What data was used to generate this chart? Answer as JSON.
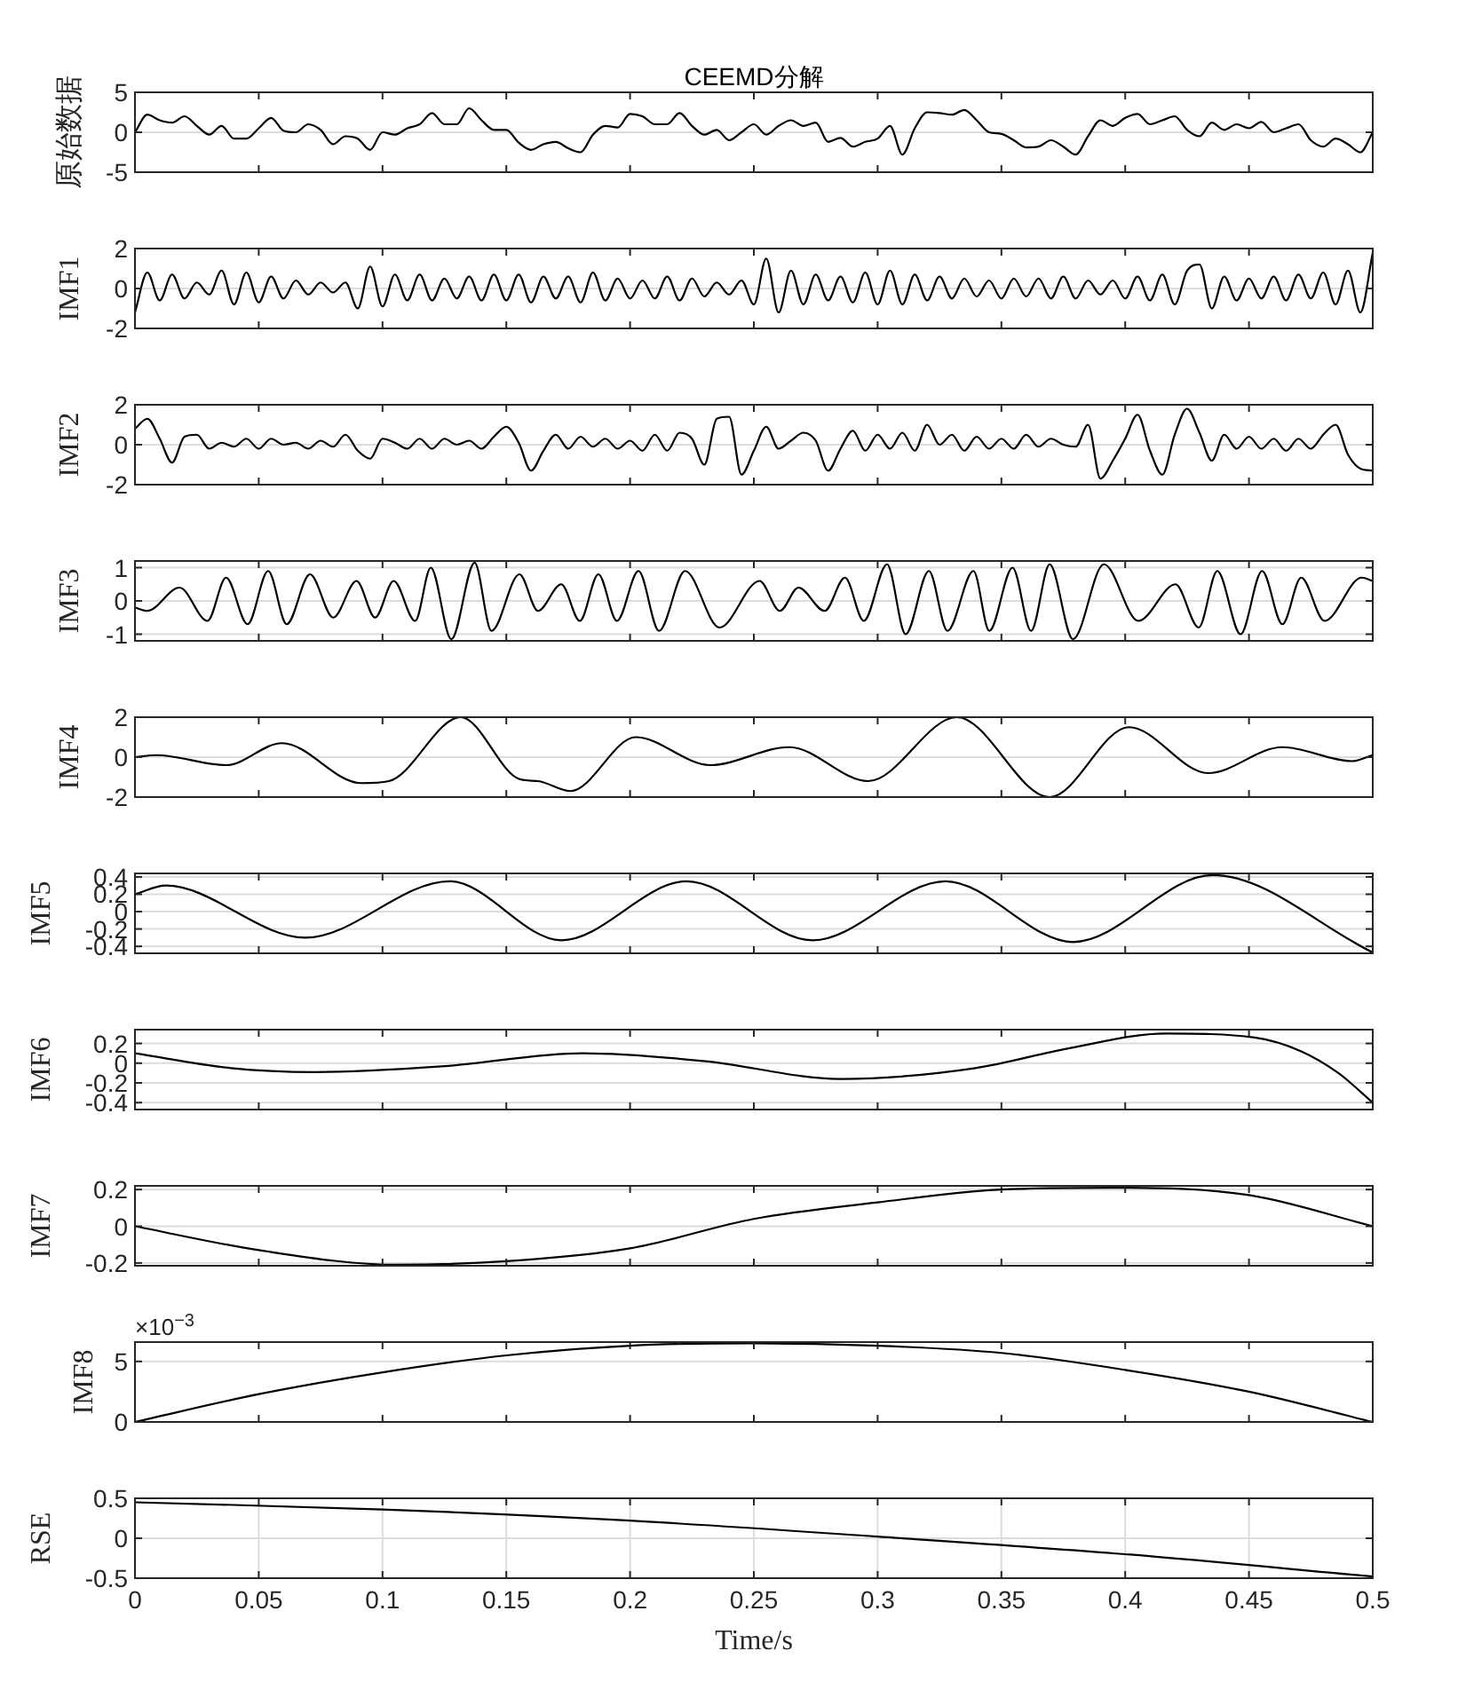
{
  "chart_data": [
    {
      "type": "line",
      "title": "CEEMD分解",
      "ylabel": "原始数据",
      "xlim": [
        0,
        0.5
      ],
      "xticks": [
        0,
        0.05,
        0.1,
        0.15,
        0.2,
        0.25,
        0.3,
        0.35,
        0.4,
        0.45,
        0.5
      ],
      "ylim": [
        -5,
        5
      ],
      "yticks": [
        -5,
        0,
        5
      ],
      "grid": "y",
      "tick_labels": "y",
      "x": [
        0,
        0.005,
        0.01,
        0.015,
        0.02,
        0.025,
        0.03,
        0.035,
        0.04,
        0.045,
        0.05,
        0.055,
        0.06,
        0.065,
        0.07,
        0.075,
        0.08,
        0.085,
        0.09,
        0.095,
        0.1,
        0.105,
        0.11,
        0.115,
        0.12,
        0.125,
        0.13,
        0.135,
        0.14,
        0.145,
        0.15,
        0.155,
        0.16,
        0.165,
        0.17,
        0.175,
        0.18,
        0.185,
        0.19,
        0.195,
        0.2,
        0.205,
        0.21,
        0.215,
        0.22,
        0.225,
        0.23,
        0.235,
        0.24,
        0.245,
        0.25,
        0.255,
        0.26,
        0.265,
        0.27,
        0.275,
        0.28,
        0.285,
        0.29,
        0.295,
        0.3,
        0.305,
        0.31,
        0.315,
        0.32,
        0.325,
        0.33,
        0.335,
        0.34,
        0.345,
        0.35,
        0.355,
        0.36,
        0.365,
        0.37,
        0.375,
        0.38,
        0.385,
        0.39,
        0.395,
        0.4,
        0.405,
        0.41,
        0.415,
        0.42,
        0.425,
        0.43,
        0.435,
        0.44,
        0.445,
        0.45,
        0.455,
        0.46,
        0.465,
        0.47,
        0.475,
        0.48,
        0.485,
        0.49,
        0.495,
        0.5
      ],
      "series": [
        {
          "color": "#000000",
          "values": [
            0,
            2.2,
            1.5,
            1.2,
            2.0,
            0.8,
            -0.3,
            0.8,
            -0.8,
            -0.8,
            0.5,
            1.8,
            0.2,
            0,
            1,
            0.3,
            -1.5,
            -0.5,
            -0.8,
            -2.2,
            0,
            -0.3,
            0.5,
            1.0,
            2.4,
            1.0,
            1.0,
            3.0,
            1.5,
            0.3,
            0.3,
            -1.3,
            -2.2,
            -1.5,
            -1.2,
            -2.0,
            -2.5,
            -0.3,
            0.8,
            0.6,
            2.3,
            2.0,
            1.0,
            1.0,
            2.4,
            0.8,
            -0.3,
            0.3,
            -1.0,
            0,
            1.0,
            -0.3,
            0.8,
            1.5,
            0.8,
            1.2,
            -1.2,
            -0.7,
            -1.8,
            -1.2,
            -0.8,
            0.8,
            -2.8,
            0.5,
            2.5,
            2.4,
            2.2,
            2.8,
            1.5,
            0,
            -0.2,
            -1.0,
            -1.9,
            -1.8,
            -1.0,
            -1.8,
            -2.8,
            -0.5,
            1.5,
            0.8,
            1.8,
            2.3,
            1.0,
            1.5,
            2.0,
            0.3,
            -0.5,
            1.2,
            0.3,
            1.0,
            0.5,
            1.3,
            0,
            0.5,
            1.0,
            -1.0,
            -1.8,
            -0.8,
            -1.5,
            -2.5,
            0
          ]
        }
      ]
    },
    {
      "type": "line",
      "ylabel": "IMF1",
      "xlim": [
        0,
        0.5
      ],
      "xticks": [
        0,
        0.05,
        0.1,
        0.15,
        0.2,
        0.25,
        0.3,
        0.35,
        0.4,
        0.45,
        0.5
      ],
      "ylim": [
        -2,
        2
      ],
      "yticks": [
        -2,
        0,
        2
      ],
      "grid": "y",
      "tick_labels": "y",
      "x": [
        0,
        0.005,
        0.01,
        0.015,
        0.02,
        0.025,
        0.03,
        0.035,
        0.04,
        0.045,
        0.05,
        0.055,
        0.06,
        0.065,
        0.07,
        0.075,
        0.08,
        0.085,
        0.09,
        0.095,
        0.1,
        0.105,
        0.11,
        0.115,
        0.12,
        0.125,
        0.13,
        0.135,
        0.14,
        0.145,
        0.15,
        0.155,
        0.16,
        0.165,
        0.17,
        0.175,
        0.18,
        0.185,
        0.19,
        0.195,
        0.2,
        0.205,
        0.21,
        0.215,
        0.22,
        0.225,
        0.23,
        0.235,
        0.24,
        0.245,
        0.25,
        0.255,
        0.26,
        0.265,
        0.27,
        0.275,
        0.28,
        0.285,
        0.29,
        0.295,
        0.3,
        0.305,
        0.31,
        0.315,
        0.32,
        0.325,
        0.33,
        0.335,
        0.34,
        0.345,
        0.35,
        0.355,
        0.36,
        0.365,
        0.37,
        0.375,
        0.38,
        0.385,
        0.39,
        0.395,
        0.4,
        0.405,
        0.41,
        0.415,
        0.42,
        0.425,
        0.43,
        0.435,
        0.44,
        0.445,
        0.45,
        0.455,
        0.46,
        0.465,
        0.47,
        0.475,
        0.48,
        0.485,
        0.49,
        0.495,
        0.5
      ],
      "series": [
        {
          "color": "#000000",
          "values": [
            -1.2,
            0.8,
            -0.6,
            0.7,
            -0.5,
            0.3,
            -0.3,
            0.9,
            -0.8,
            0.8,
            -0.7,
            0.6,
            -0.5,
            0.4,
            -0.3,
            0.3,
            -0.2,
            0.3,
            -1.0,
            1.1,
            -0.9,
            0.7,
            -0.6,
            0.7,
            -0.6,
            0.5,
            -0.5,
            0.6,
            -0.6,
            0.7,
            -0.6,
            0.7,
            -0.7,
            0.6,
            -0.5,
            0.6,
            -0.7,
            0.8,
            -0.6,
            0.5,
            -0.5,
            0.4,
            -0.5,
            0.6,
            -0.6,
            0.5,
            -0.4,
            0.3,
            -0.3,
            0.4,
            -0.8,
            1.5,
            -1.2,
            0.9,
            -0.8,
            0.7,
            -0.6,
            0.6,
            -0.7,
            0.8,
            -0.8,
            0.9,
            -0.8,
            0.7,
            -0.6,
            0.6,
            -0.5,
            0.5,
            -0.4,
            0.4,
            -0.5,
            0.5,
            -0.4,
            0.5,
            -0.5,
            0.6,
            -0.5,
            0.4,
            -0.3,
            0.4,
            -0.5,
            0.6,
            -0.6,
            0.7,
            -0.8,
            0.9,
            1.2,
            -1.0,
            0.6,
            -0.6,
            0.5,
            -0.5,
            0.6,
            -0.6,
            0.7,
            -0.5,
            0.8,
            -0.8,
            0.9,
            -1.2,
            1.8
          ]
        }
      ]
    },
    {
      "type": "line",
      "ylabel": "IMF2",
      "xlim": [
        0,
        0.5
      ],
      "xticks": [
        0,
        0.05,
        0.1,
        0.15,
        0.2,
        0.25,
        0.3,
        0.35,
        0.4,
        0.45,
        0.5
      ],
      "ylim": [
        -2,
        2
      ],
      "yticks": [
        -2,
        0,
        2
      ],
      "grid": "y",
      "tick_labels": "y",
      "x": [
        0,
        0.005,
        0.01,
        0.015,
        0.02,
        0.025,
        0.03,
        0.035,
        0.04,
        0.045,
        0.05,
        0.055,
        0.06,
        0.065,
        0.07,
        0.075,
        0.08,
        0.085,
        0.09,
        0.095,
        0.1,
        0.105,
        0.11,
        0.115,
        0.12,
        0.125,
        0.13,
        0.135,
        0.14,
        0.145,
        0.15,
        0.155,
        0.16,
        0.165,
        0.17,
        0.175,
        0.18,
        0.185,
        0.19,
        0.195,
        0.2,
        0.205,
        0.21,
        0.215,
        0.22,
        0.225,
        0.23,
        0.235,
        0.24,
        0.245,
        0.25,
        0.255,
        0.26,
        0.265,
        0.27,
        0.275,
        0.28,
        0.285,
        0.29,
        0.295,
        0.3,
        0.305,
        0.31,
        0.315,
        0.32,
        0.325,
        0.33,
        0.335,
        0.34,
        0.345,
        0.35,
        0.355,
        0.36,
        0.365,
        0.37,
        0.375,
        0.38,
        0.385,
        0.39,
        0.395,
        0.4,
        0.405,
        0.41,
        0.415,
        0.42,
        0.425,
        0.43,
        0.435,
        0.44,
        0.445,
        0.45,
        0.455,
        0.46,
        0.465,
        0.47,
        0.475,
        0.48,
        0.485,
        0.49,
        0.495,
        0.5
      ],
      "series": [
        {
          "color": "#000000",
          "values": [
            0.8,
            1.3,
            0.3,
            -0.9,
            0.4,
            0.5,
            -0.2,
            0.1,
            -0.1,
            0.3,
            -0.2,
            0.3,
            0,
            0.1,
            -0.2,
            0.2,
            -0.1,
            0.5,
            -0.3,
            -0.7,
            0.3,
            0.1,
            -0.2,
            0.3,
            -0.2,
            0.3,
            0,
            0.2,
            -0.2,
            0.4,
            0.9,
            0.1,
            -1.3,
            -0.3,
            0.5,
            -0.2,
            0.4,
            -0.1,
            0.3,
            -0.2,
            0.2,
            -0.3,
            0.5,
            -0.3,
            0.6,
            0.3,
            -1.0,
            1.3,
            1.4,
            -1.5,
            -0.3,
            0.9,
            -0.2,
            0.2,
            0.6,
            0.2,
            -1.3,
            -0.2,
            0.7,
            -0.3,
            0.5,
            -0.2,
            0.6,
            -0.3,
            1.0,
            0,
            0.5,
            -0.3,
            0.4,
            -0.2,
            0.3,
            -0.2,
            0.5,
            -0.1,
            0.3,
            0,
            -0.1,
            1.0,
            -1.7,
            -0.8,
            0.3,
            1.5,
            -0.3,
            -1.5,
            0.5,
            1.8,
            0.6,
            -0.8,
            0.5,
            -0.2,
            0.4,
            -0.2,
            0.3,
            -0.3,
            0.3,
            -0.2,
            0.5,
            1.0,
            -0.5,
            -1.2,
            -1.3
          ]
        }
      ]
    },
    {
      "type": "line",
      "ylabel": "IMF3",
      "xlim": [
        0,
        0.5
      ],
      "xticks": [
        0,
        0.05,
        0.1,
        0.15,
        0.2,
        0.25,
        0.3,
        0.35,
        0.4,
        0.45,
        0.5
      ],
      "ylim": [
        -1.2,
        1.2
      ],
      "yticks": [
        -1,
        0,
        1
      ],
      "grid": "y",
      "tick_labels": "y",
      "series": [
        {
          "color": "#000000",
          "x": [
            0,
            0.0049,
            0.018,
            0.0293,
            0.0368,
            0.0455,
            0.0538,
            0.0613,
            0.0707,
            0.0801,
            0.0895,
            0.097,
            0.1045,
            0.1132,
            0.1195,
            0.1278,
            0.1372,
            0.144,
            0.1553,
            0.1628,
            0.1722,
            0.1797,
            0.1872,
            0.1947,
            0.2034,
            0.2117,
            0.2222,
            0.2361,
            0.2523,
            0.2605,
            0.268,
            0.2786,
            0.2868,
            0.2944,
            0.3038,
            0.3113,
            0.3207,
            0.3282,
            0.3387,
            0.3451,
            0.3545,
            0.362,
            0.3695,
            0.3789,
            0.3914,
            0.4053,
            0.4203,
            0.4297,
            0.4372,
            0.4466,
            0.4553,
            0.4635,
            0.4711,
            0.4805,
            0.4955,
            0.5
          ],
          "values": [
            -0.2,
            -0.3,
            0.4,
            -0.6,
            0.7,
            -0.7,
            0.9,
            -0.7,
            0.8,
            -0.5,
            0.6,
            -0.5,
            0.6,
            -0.6,
            1.0,
            -1.15,
            1.15,
            -0.9,
            0.8,
            -0.3,
            0.5,
            -0.6,
            0.8,
            -0.6,
            0.9,
            -0.9,
            0.9,
            -0.8,
            0.6,
            -0.3,
            0.4,
            -0.3,
            0.7,
            -0.6,
            1.1,
            -1.0,
            0.9,
            -0.9,
            0.9,
            -0.9,
            1.0,
            -0.9,
            1.1,
            -1.15,
            1.1,
            -0.6,
            0.5,
            -0.8,
            0.9,
            -1.0,
            0.9,
            -0.7,
            0.7,
            -0.6,
            0.7,
            0.6
          ]
        }
      ]
    },
    {
      "type": "line",
      "ylabel": "IMF4",
      "xlim": [
        0,
        0.5
      ],
      "xticks": [
        0,
        0.05,
        0.1,
        0.15,
        0.2,
        0.25,
        0.3,
        0.35,
        0.4,
        0.45,
        0.5
      ],
      "ylim": [
        -2,
        2
      ],
      "yticks": [
        -2,
        0,
        2
      ],
      "grid": "y",
      "tick_labels": "y",
      "series": [
        {
          "color": "#000000",
          "x": [
            0,
            0.0086,
            0.0368,
            0.0594,
            0.0914,
            0.1026,
            0.1316,
            0.1553,
            0.1628,
            0.1759,
            0.2023,
            0.2323,
            0.2643,
            0.2962,
            0.332,
            0.3695,
            0.4015,
            0.4335,
            0.4635,
            0.4917,
            0.5
          ],
          "values": [
            0,
            0.1,
            -0.4,
            0.7,
            -1.3,
            -1.2,
            2.0,
            -1.1,
            -1.2,
            -1.7,
            1.0,
            -0.4,
            0.5,
            -1.2,
            2.0,
            -2.0,
            1.5,
            -0.8,
            0.5,
            -0.2,
            0.1
          ]
        }
      ]
    },
    {
      "type": "line",
      "ylabel": "IMF5",
      "xlim": [
        0,
        0.5
      ],
      "xticks": [
        0,
        0.05,
        0.1,
        0.15,
        0.2,
        0.25,
        0.3,
        0.35,
        0.4,
        0.45,
        0.5
      ],
      "ylim": [
        -0.48,
        0.44
      ],
      "yticks": [
        -0.4,
        -0.2,
        0,
        0.2,
        0.4
      ],
      "grid": "y",
      "tick_labels": "y",
      "series": [
        {
          "color": "#000000",
          "x": [
            0,
            0.0124,
            0.0688,
            0.1271,
            0.1722,
            0.2229,
            0.2737,
            0.3274,
            0.3789,
            0.4353,
            0.5
          ],
          "values": [
            0.2,
            0.3,
            -0.3,
            0.35,
            -0.33,
            0.35,
            -0.33,
            0.35,
            -0.35,
            0.42,
            -0.47
          ]
        }
      ]
    },
    {
      "type": "line",
      "ylabel": "IMF6",
      "xlim": [
        0,
        0.5
      ],
      "xticks": [
        0,
        0.05,
        0.1,
        0.15,
        0.2,
        0.25,
        0.3,
        0.35,
        0.4,
        0.45,
        0.5
      ],
      "ylim": [
        -0.47,
        0.34
      ],
      "yticks": [
        -0.4,
        -0.2,
        0,
        0.2
      ],
      "grid": "y",
      "tick_labels": "y",
      "series": [
        {
          "color": "#000000",
          "x": [
            0,
            0.0387,
            0.0726,
            0.1252,
            0.1808,
            0.2305,
            0.285,
            0.3395,
            0.3771,
            0.4165,
            0.4523,
            0.4711,
            0.4861,
            0.5
          ],
          "values": [
            0.1,
            -0.05,
            -0.09,
            -0.03,
            0.1,
            0.02,
            -0.16,
            -0.05,
            0.15,
            0.3,
            0.26,
            0.12,
            -0.1,
            -0.4
          ]
        }
      ]
    },
    {
      "type": "line",
      "ylabel": "IMF7",
      "xlim": [
        0,
        0.5
      ],
      "xticks": [
        0,
        0.05,
        0.1,
        0.15,
        0.2,
        0.25,
        0.3,
        0.35,
        0.4,
        0.45,
        0.5
      ],
      "ylim": [
        -0.215,
        0.22
      ],
      "yticks": [
        -0.2,
        0,
        0.2
      ],
      "grid": "y",
      "tick_labels": "y",
      "series": [
        {
          "color": "#000000",
          "x": [
            0,
            0.05,
            0.106,
            0.15,
            0.2,
            0.25,
            0.3,
            0.35,
            0.396,
            0.45,
            0.5
          ],
          "values": [
            0,
            -0.13,
            -0.21,
            -0.19,
            -0.12,
            0.04,
            0.13,
            0.2,
            0.21,
            0.17,
            0
          ]
        }
      ]
    },
    {
      "type": "line",
      "ylabel": "IMF8",
      "annotations": [
        "×10$^{−3}$"
      ],
      "xlim": [
        0,
        0.5
      ],
      "xticks": [
        0,
        0.05,
        0.1,
        0.15,
        0.2,
        0.25,
        0.3,
        0.35,
        0.4,
        0.45,
        0.5
      ],
      "ylim": [
        0,
        6.6
      ],
      "yticks": [
        0,
        5
      ],
      "grid": "y",
      "tick_labels": "y",
      "series": [
        {
          "color": "#000000",
          "x": [
            0,
            0.05,
            0.1,
            0.15,
            0.2,
            0.25,
            0.3,
            0.35,
            0.4,
            0.45,
            0.5
          ],
          "values": [
            0,
            2.3,
            4.1,
            5.5,
            6.3,
            6.5,
            6.3,
            5.7,
            4.3,
            2.5,
            0
          ]
        }
      ]
    },
    {
      "type": "line",
      "ylabel": "RSE",
      "xlabel": "Time/s",
      "xlim": [
        0,
        0.5
      ],
      "xticks": [
        0,
        0.05,
        0.1,
        0.15,
        0.2,
        0.25,
        0.3,
        0.35,
        0.4,
        0.45,
        0.5
      ],
      "ylim": [
        -0.5,
        0.5
      ],
      "yticks": [
        -0.5,
        0,
        0.5
      ],
      "grid": true,
      "series": [
        {
          "color": "#000000",
          "x": [
            0,
            0.1,
            0.2,
            0.3,
            0.4,
            0.5
          ],
          "values": [
            0.45,
            0.36,
            0.22,
            0.02,
            -0.2,
            -0.48
          ]
        }
      ]
    }
  ]
}
